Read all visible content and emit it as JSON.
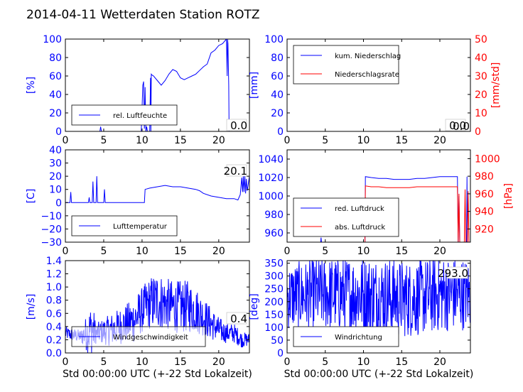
{
  "title": "2014-04-11 Wetterdaten Station ROTZ",
  "colors": {
    "blue": "#0000ff",
    "red": "#ff0000",
    "light_blue": "#8080ff",
    "black": "#000000"
  },
  "chart_data": [
    {
      "id": "humidity",
      "type": "line",
      "ylabel": "[%]",
      "ylim": [
        0,
        100
      ],
      "xlim": [
        0,
        24
      ],
      "yticks": [
        "0",
        "20",
        "40",
        "60",
        "80",
        "100"
      ],
      "xticks": [
        "0",
        "5",
        "10",
        "15",
        "20"
      ],
      "series": [
        {
          "name": "rel. Luftfeuchte",
          "color": "#0000ff",
          "x": [
            0,
            4.5,
            4.6,
            4.7,
            9.9,
            10.1,
            10.2,
            10.3,
            10.4,
            10.5,
            10.6,
            10.7,
            11.0,
            11.1,
            11.15,
            11.2,
            11.3,
            11.5,
            12,
            12.5,
            13,
            13.5,
            14,
            14.5,
            15,
            15.5,
            16,
            16.5,
            17,
            17.5,
            18,
            18.5,
            19,
            19.5,
            20,
            20.5,
            21,
            21.1,
            21.15,
            21.2,
            21.3,
            21.35,
            21.4,
            21.5,
            24
          ],
          "y": [
            0,
            0,
            5,
            0,
            0,
            50,
            54,
            3,
            48,
            0,
            5,
            0,
            0,
            58,
            0,
            62,
            61,
            60,
            55,
            50,
            55,
            62,
            67,
            65,
            58,
            56,
            58,
            60,
            62,
            66,
            70,
            73,
            85,
            88,
            93,
            95,
            100,
            60,
            100,
            95,
            50,
            0,
            0,
            0,
            0
          ]
        }
      ],
      "legend": "lower-left",
      "annotation": "0.0"
    },
    {
      "id": "precip",
      "type": "line",
      "ylabel": "[mm]",
      "ylabel_right": "[mm/std]",
      "ylim": [
        0,
        100
      ],
      "ylim_right": [
        0,
        50
      ],
      "xlim": [
        0,
        24
      ],
      "yticks": [
        "0",
        "20",
        "40",
        "60",
        "80",
        "100"
      ],
      "yticks_right": [
        "0",
        "10",
        "20",
        "30",
        "40",
        "50"
      ],
      "xticks": [
        "0",
        "5",
        "10",
        "15",
        "20"
      ],
      "series": [
        {
          "name": "kum. Niederschlag",
          "color": "#0000ff",
          "x": [
            0,
            24
          ],
          "y": [
            0,
            0
          ]
        },
        {
          "name": "Niederschlagsrate",
          "color": "#ff0000",
          "x": [
            0,
            24
          ],
          "y": [
            0,
            0
          ],
          "axis": "right"
        }
      ],
      "legend": "upper-left",
      "annotation": "0.0",
      "annotation2": "0.0"
    },
    {
      "id": "temperature",
      "type": "line",
      "ylabel": "[C]",
      "ylim": [
        -30,
        40
      ],
      "xlim": [
        0,
        24
      ],
      "yticks": [
        "−30",
        "−20",
        "−10",
        "0",
        "10",
        "20",
        "30",
        "40"
      ],
      "xticks": [
        "0",
        "5",
        "10",
        "15",
        "20"
      ],
      "series": [
        {
          "name": "Lufttemperatur",
          "color": "#0000ff",
          "x": [
            0,
            0.6,
            0.7,
            0.8,
            3.0,
            3.1,
            3.2,
            3.5,
            3.6,
            3.7,
            4.0,
            4.1,
            4.2,
            5.0,
            5.1,
            5.2,
            10.3,
            10.4,
            11,
            12,
            13,
            14,
            15,
            16,
            17,
            17.5,
            18,
            19,
            20,
            21,
            22,
            22.5,
            22.8,
            23.0,
            23.1,
            23.2,
            23.3,
            23.4,
            23.5,
            23.6,
            23.7,
            23.8,
            24
          ],
          "y": [
            0,
            0,
            8,
            0,
            0,
            4,
            0,
            0,
            16,
            0,
            0,
            20,
            0,
            0,
            10,
            0,
            0,
            10,
            11,
            12,
            13,
            12,
            12,
            11,
            10,
            9,
            7,
            5,
            4,
            3,
            3,
            2,
            6,
            19,
            8,
            20,
            8,
            21,
            7,
            18,
            9,
            12,
            20
          ]
        }
      ],
      "legend": "lower-left",
      "annotation": "20.1"
    },
    {
      "id": "pressure",
      "type": "line",
      "ylabel": "[hPa]",
      "ylim": [
        950,
        1050
      ],
      "ylim_right": [
        905,
        1010
      ],
      "xlim": [
        0,
        24
      ],
      "yticks": [
        "960",
        "980",
        "1000",
        "1020",
        "1040"
      ],
      "yticks_right": [
        "920",
        "940",
        "960",
        "980",
        "1000"
      ],
      "xticks": [
        "0",
        "5",
        "10",
        "15",
        "20"
      ],
      "series": [
        {
          "name": "red. Luftdruck",
          "color": "#0000ff",
          "x": [
            4.4,
            4.45,
            4.5,
            10.2,
            10.25,
            11,
            12,
            13,
            14,
            15,
            16,
            17,
            18,
            19,
            20,
            21,
            22,
            22.3,
            22.4,
            22.5,
            22.6,
            23.5,
            23.55,
            23.6
          ],
          "y": [
            950,
            955,
            950,
            950,
            1021,
            1020,
            1019,
            1019,
            1018,
            1018,
            1018,
            1019,
            1019,
            1020,
            1021,
            1021,
            1021,
            1021,
            950,
            1000,
            950,
            950,
            1021,
            950
          ]
        },
        {
          "name": "abs. Luftdruck",
          "color": "#ff0000",
          "axis": "right",
          "x": [
            10.2,
            10.25,
            11,
            12,
            13,
            14,
            15,
            16,
            17,
            18,
            19,
            20,
            21,
            22,
            22.3,
            22.4,
            22.5,
            22.6,
            23.2,
            23.3,
            23.4,
            23.6,
            23.7,
            23.8
          ],
          "y": [
            905,
            969,
            968,
            968,
            967,
            967,
            967,
            967,
            968,
            968,
            968,
            968,
            968,
            968,
            968,
            905,
            960,
            905,
            905,
            965,
            905,
            905,
            963,
            905
          ]
        }
      ],
      "legend": "lower-left"
    },
    {
      "id": "wind_speed",
      "type": "line",
      "ylabel": "[m/s]",
      "ylim": [
        0,
        1.4
      ],
      "xlim": [
        0,
        24
      ],
      "yticks": [
        "0.0",
        "0.2",
        "0.4",
        "0.6",
        "0.8",
        "1.0",
        "1.2",
        "1.4"
      ],
      "xticks": [
        "0",
        "5",
        "10",
        "15",
        "20"
      ],
      "xlabel": "Std 00:00:00 UTC (+-22 Std Lokalzeit)",
      "series": [
        {
          "name": "Windgeschwindigkeit",
          "color": "#0000ff",
          "noise": true,
          "x": [
            0,
            2,
            3.5,
            4,
            6,
            8,
            9,
            10,
            11,
            12,
            13,
            14,
            15,
            16,
            17,
            18,
            19,
            20,
            21,
            22,
            23,
            24
          ],
          "y": [
            0.3,
            0.25,
            0.35,
            0.3,
            0.35,
            0.45,
            0.5,
            0.65,
            0.75,
            0.8,
            0.75,
            0.7,
            0.7,
            0.7,
            0.65,
            0.55,
            0.45,
            0.35,
            0.3,
            0.3,
            0.2,
            0.2
          ],
          "amp": [
            0.1,
            0.1,
            0.45,
            0.15,
            0.25,
            0.3,
            0.35,
            0.35,
            0.4,
            0.45,
            0.4,
            0.4,
            0.4,
            0.4,
            0.35,
            0.3,
            0.25,
            0.2,
            0.15,
            0.15,
            0.12,
            0.1
          ]
        }
      ],
      "legend": "lower-left",
      "annotation": "0.4"
    },
    {
      "id": "wind_dir",
      "type": "line",
      "ylabel": "[deg]",
      "ylim": [
        0,
        360
      ],
      "xlim": [
        0,
        24
      ],
      "yticks": [
        "0",
        "50",
        "100",
        "150",
        "200",
        "250",
        "300",
        "350"
      ],
      "xticks": [
        "0",
        "5",
        "10",
        "15",
        "20"
      ],
      "xlabel": "Std 00:00:00 UTC (+-22 Std Lokalzeit)",
      "series": [
        {
          "name": "Windrichtung",
          "color": "#0000ff",
          "noise": true,
          "x": [
            0,
            4,
            8,
            12,
            16,
            20,
            24
          ],
          "y": [
            220,
            230,
            230,
            220,
            210,
            230,
            230
          ],
          "amp": [
            130,
            140,
            150,
            160,
            150,
            150,
            140
          ]
        }
      ],
      "legend": "lower-left",
      "annotation": "293.0"
    }
  ]
}
